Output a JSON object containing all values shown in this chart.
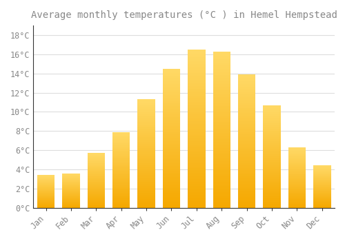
{
  "title": "Average monthly temperatures (°C ) in Hemel Hempstead",
  "months": [
    "Jan",
    "Feb",
    "Mar",
    "Apr",
    "May",
    "Jun",
    "Jul",
    "Aug",
    "Sep",
    "Oct",
    "Nov",
    "Dec"
  ],
  "temperatures": [
    3.4,
    3.6,
    5.7,
    7.9,
    11.3,
    14.5,
    16.5,
    16.3,
    13.9,
    10.7,
    6.3,
    4.4
  ],
  "bar_color_bottom": "#F5A800",
  "bar_color_top": "#FFD966",
  "background_color": "#FFFFFF",
  "plot_bg_color": "#FFFFFF",
  "grid_color": "#DDDDDD",
  "text_color": "#888888",
  "spine_color": "#333333",
  "ylim": [
    0,
    19
  ],
  "yticks": [
    0,
    2,
    4,
    6,
    8,
    10,
    12,
    14,
    16,
    18
  ],
  "title_fontsize": 10,
  "tick_fontsize": 8.5
}
